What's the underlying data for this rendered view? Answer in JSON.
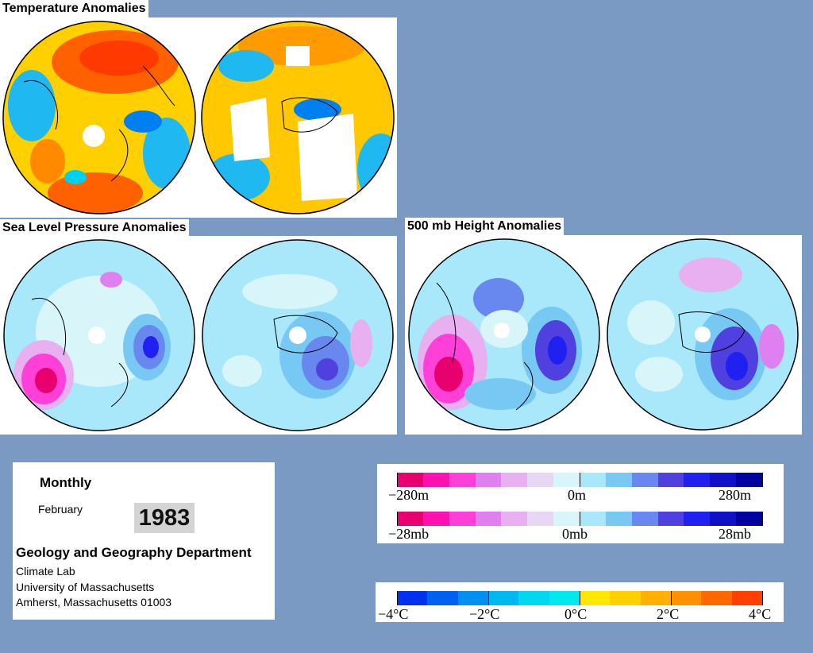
{
  "titles": {
    "temperature": "Temperature Anomalies",
    "slp": "Sea Level Pressure Anomalies",
    "height500": "500 mb Height Anomalies"
  },
  "info": {
    "period": "Monthly",
    "month": "February",
    "year": "1983",
    "department": "Geology and Geography Department",
    "lab": "Climate Lab",
    "university": "University of Massachusetts",
    "address": "Amherst, Massachusetts 01003"
  },
  "height_scale": {
    "min_label": "−280m",
    "mid_label": "0m",
    "max_label": "280m"
  },
  "pressure_scale": {
    "min_label": "−28mb",
    "mid_label": "0mb",
    "max_label": "28mb"
  },
  "temp_scale": {
    "labels": [
      "−4°C",
      "−2°C",
      "0°C",
      "2°C",
      "4°C"
    ]
  },
  "colors": {
    "background": "#7b9ac3",
    "anomaly_scale": [
      "#e8006e",
      "#ff10b0",
      "#ff40d8",
      "#e080f0",
      "#e8b0f0",
      "#e6d8f4",
      "#d8f6fa",
      "#a8e8fa",
      "#78c8f4",
      "#6888f0",
      "#5040e0",
      "#2020f0",
      "#1010c8",
      "#0000a0"
    ],
    "temp_scale": [
      "#0030f0",
      "#0060f0",
      "#0090f0",
      "#00b8f0",
      "#00d8f0",
      "#00e8f0",
      "#ffe800",
      "#ffd000",
      "#ffb000",
      "#ff9000",
      "#ff6800",
      "#ff4000"
    ]
  }
}
